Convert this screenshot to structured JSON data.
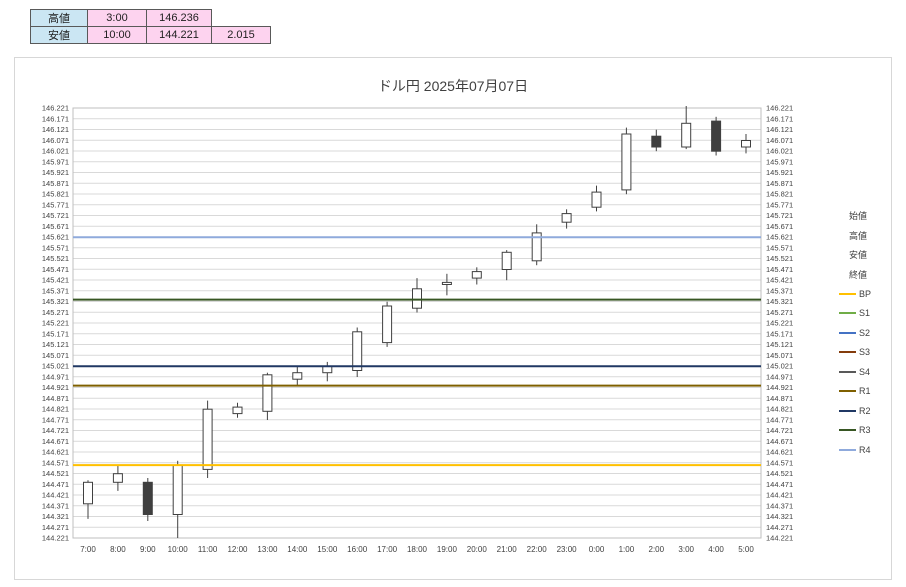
{
  "summary_table": {
    "header_bg": "#cbe6f3",
    "value_bg": "#fdd3ef",
    "rows": [
      {
        "label": "高値",
        "time": "3:00",
        "value": "146.236",
        "extra": ""
      },
      {
        "label": "安値",
        "time": "10:00",
        "value": "144.221",
        "extra": "2.015"
      }
    ]
  },
  "chart_data": {
    "type": "candlestick",
    "title": "ドル円  2025年07月07日",
    "ymin": 144.221,
    "ymax": 146.221,
    "ystep": 0.05,
    "grid": true,
    "legend_position": "right",
    "colors": {
      "up_fill": "#ffffff",
      "down_fill": "#3f3f3f",
      "outline": "#404040",
      "grid": "#d9d9d9",
      "plot_border": "#bfbfbf"
    },
    "candles": [
      {
        "time": "7:00",
        "o": 144.38,
        "h": 144.49,
        "l": 144.31,
        "c": 144.48
      },
      {
        "time": "8:00",
        "o": 144.48,
        "h": 144.56,
        "l": 144.44,
        "c": 144.52
      },
      {
        "time": "9:00",
        "o": 144.48,
        "h": 144.5,
        "l": 144.3,
        "c": 144.33
      },
      {
        "time": "10:00",
        "o": 144.33,
        "h": 144.58,
        "l": 144.221,
        "c": 144.56
      },
      {
        "time": "11:00",
        "o": 144.54,
        "h": 144.86,
        "l": 144.5,
        "c": 144.82
      },
      {
        "time": "12:00",
        "o": 144.8,
        "h": 144.85,
        "l": 144.78,
        "c": 144.83
      },
      {
        "time": "13:00",
        "o": 144.81,
        "h": 144.99,
        "l": 144.77,
        "c": 144.98
      },
      {
        "time": "14:00",
        "o": 144.96,
        "h": 145.02,
        "l": 144.93,
        "c": 144.99
      },
      {
        "time": "15:00",
        "o": 144.99,
        "h": 145.04,
        "l": 144.95,
        "c": 145.02
      },
      {
        "time": "16:00",
        "o": 145.0,
        "h": 145.2,
        "l": 144.97,
        "c": 145.18
      },
      {
        "time": "17:00",
        "o": 145.13,
        "h": 145.32,
        "l": 145.11,
        "c": 145.3
      },
      {
        "time": "18:00",
        "o": 145.29,
        "h": 145.43,
        "l": 145.27,
        "c": 145.38
      },
      {
        "time": "19:00",
        "o": 145.4,
        "h": 145.45,
        "l": 145.35,
        "c": 145.41
      },
      {
        "time": "20:00",
        "o": 145.43,
        "h": 145.48,
        "l": 145.4,
        "c": 145.46
      },
      {
        "time": "21:00",
        "o": 145.47,
        "h": 145.56,
        "l": 145.42,
        "c": 145.55
      },
      {
        "time": "22:00",
        "o": 145.51,
        "h": 145.68,
        "l": 145.49,
        "c": 145.64
      },
      {
        "time": "23:00",
        "o": 145.69,
        "h": 145.75,
        "l": 145.66,
        "c": 145.73
      },
      {
        "time": "0:00",
        "o": 145.76,
        "h": 145.86,
        "l": 145.74,
        "c": 145.83
      },
      {
        "time": "1:00",
        "o": 145.84,
        "h": 146.13,
        "l": 145.82,
        "c": 146.1
      },
      {
        "time": "2:00",
        "o": 146.09,
        "h": 146.12,
        "l": 146.02,
        "c": 146.04
      },
      {
        "time": "3:00",
        "o": 146.04,
        "h": 146.236,
        "l": 146.03,
        "c": 146.15
      },
      {
        "time": "4:00",
        "o": 146.16,
        "h": 146.18,
        "l": 146.0,
        "c": 146.02
      },
      {
        "time": "5:00",
        "o": 146.04,
        "h": 146.1,
        "l": 146.01,
        "c": 146.07
      }
    ],
    "pivot_lines": [
      {
        "name": "BP",
        "value": 144.56,
        "color": "#ffc000"
      },
      {
        "name": "R1",
        "value": 144.93,
        "color": "#7f6000"
      },
      {
        "name": "R2",
        "value": 145.02,
        "color": "#203864"
      },
      {
        "name": "R3",
        "value": 145.33,
        "color": "#375623"
      },
      {
        "name": "R4",
        "value": 145.62,
        "color": "#8faadc"
      }
    ],
    "legend": [
      {
        "label": "始値"
      },
      {
        "label": "高値"
      },
      {
        "label": "安値"
      },
      {
        "label": "終値"
      },
      {
        "label": "BP",
        "color": "#ffc000"
      },
      {
        "label": "S1",
        "color": "#70ad47"
      },
      {
        "label": "S2",
        "color": "#4472c4"
      },
      {
        "label": "S3",
        "color": "#843c0c"
      },
      {
        "label": "S4",
        "color": "#595959"
      },
      {
        "label": "R1",
        "color": "#7f6000"
      },
      {
        "label": "R2",
        "color": "#203864"
      },
      {
        "label": "R3",
        "color": "#375623"
      },
      {
        "label": "R4",
        "color": "#8faadc"
      }
    ]
  }
}
